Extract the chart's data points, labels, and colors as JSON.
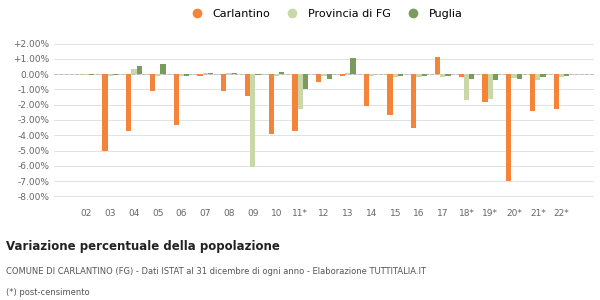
{
  "categories": [
    "02",
    "03",
    "04",
    "05",
    "06",
    "07",
    "08",
    "09",
    "10",
    "11*",
    "12",
    "13",
    "14",
    "15",
    "16",
    "17",
    "18*",
    "19*",
    "20*",
    "21*",
    "22*"
  ],
  "carlantino": [
    0.0,
    -5.0,
    -3.7,
    -1.1,
    -3.3,
    -0.1,
    -1.1,
    -1.4,
    -3.9,
    -3.7,
    -0.5,
    -0.1,
    -2.1,
    -2.7,
    -3.5,
    1.1,
    -0.2,
    -1.8,
    -7.0,
    -2.4,
    -2.3
  ],
  "provincia_fg": [
    -0.05,
    -0.1,
    0.35,
    -0.15,
    -0.1,
    0.1,
    0.1,
    -6.1,
    -0.1,
    -2.3,
    -0.15,
    0.05,
    -0.15,
    -0.2,
    -0.2,
    -0.2,
    -1.7,
    -1.6,
    -0.25,
    -0.35,
    -0.2
  ],
  "puglia": [
    -0.05,
    -0.05,
    0.55,
    0.65,
    -0.1,
    0.05,
    0.1,
    -0.05,
    0.15,
    -1.0,
    -0.3,
    1.05,
    0.0,
    -0.1,
    -0.15,
    -0.15,
    -0.3,
    -0.35,
    -0.3,
    -0.2,
    -0.15
  ],
  "carlantino_color": "#f4843a",
  "provincia_color": "#c9d8a8",
  "puglia_color": "#7a9a5e",
  "title": "Variazione percentuale della popolazione",
  "footnote1": "COMUNE DI CARLANTINO (FG) - Dati ISTAT al 31 dicembre di ogni anno - Elaborazione TUTTITALIA.IT",
  "footnote2": "(*) post-censimento",
  "ylim": [
    -8.5,
    2.5
  ],
  "yticks": [
    -8.0,
    -7.0,
    -6.0,
    -5.0,
    -4.0,
    -3.0,
    -2.0,
    -1.0,
    0.0,
    1.0,
    2.0
  ],
  "bar_width": 0.22
}
